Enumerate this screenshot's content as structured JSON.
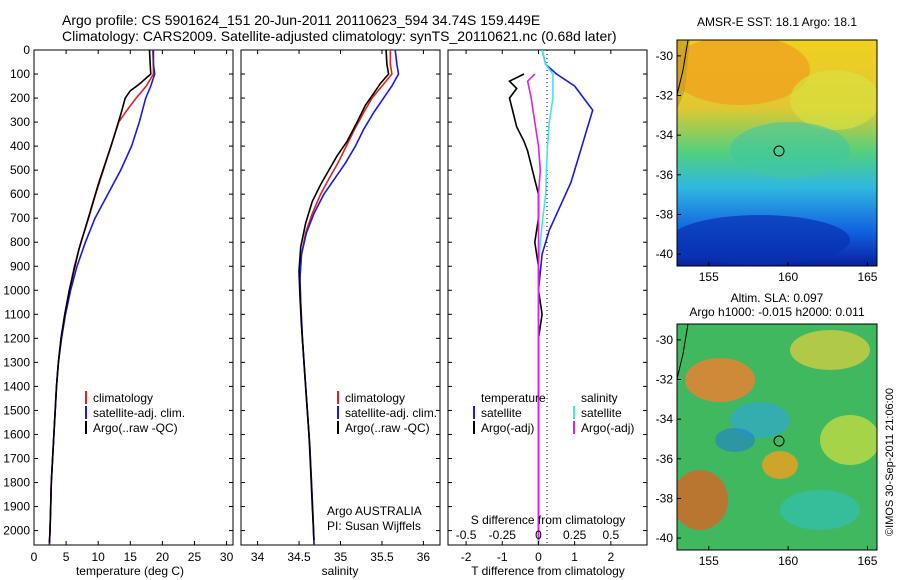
{
  "header": {
    "line1": "Argo profile: CS 5901624_151 20-Jun-2011 20110623_594 34.74S 159.449E",
    "line2": "Climatology: CARS2009. Satellite-adjusted climatology: synTS_20110621.nc (0.68d later)"
  },
  "colors": {
    "climatology": "#e8201c",
    "satellite": "#1a1adc",
    "argo": "#000000",
    "salinity_satellite": "#40e8e8",
    "salinity_argo": "#e020e0"
  },
  "chart_data": [
    {
      "type": "line",
      "panel": "temperature",
      "xlabel": "temperature (deg C)",
      "ylabel": "",
      "xlim": [
        0,
        31
      ],
      "ylim": [
        2060,
        0
      ],
      "xticks": [
        "0",
        "5",
        "10",
        "15",
        "20",
        "25",
        "30"
      ],
      "yticks": [
        "0",
        "100",
        "200",
        "300",
        "400",
        "500",
        "600",
        "700",
        "800",
        "900",
        "1000",
        "1100",
        "1200",
        "1300",
        "1400",
        "1500",
        "1600",
        "1700",
        "1800",
        "1900",
        "2000"
      ],
      "legend": [
        "climatology",
        "satellite-adj. clim.",
        "Argo(..raw -QC)"
      ],
      "series": [
        {
          "name": "climatology",
          "color": "climatology",
          "points": [
            [
              18.5,
              0
            ],
            [
              18.6,
              60
            ],
            [
              18.6,
              100
            ],
            [
              17.5,
              150
            ],
            [
              15.9,
              200
            ],
            [
              14.5,
              250
            ],
            [
              13.2,
              300
            ],
            [
              12.0,
              400
            ],
            [
              10.8,
              500
            ],
            [
              9.6,
              600
            ],
            [
              8.5,
              700
            ],
            [
              7.3,
              800
            ],
            [
              6.3,
              900
            ],
            [
              5.5,
              1000
            ],
            [
              4.8,
              1100
            ],
            [
              4.2,
              1200
            ],
            [
              3.8,
              1300
            ],
            [
              3.5,
              1400
            ],
            [
              3.3,
              1500
            ],
            [
              3.1,
              1600
            ],
            [
              2.9,
              1700
            ],
            [
              2.7,
              1800
            ],
            [
              2.6,
              1900
            ],
            [
              2.5,
              2000
            ],
            [
              2.4,
              2060
            ]
          ]
        },
        {
          "name": "satellite-adj. clim.",
          "color": "satellite",
          "points": [
            [
              18.6,
              0
            ],
            [
              18.6,
              60
            ],
            [
              18.8,
              100
            ],
            [
              18.2,
              150
            ],
            [
              17.4,
              200
            ],
            [
              16.4,
              300
            ],
            [
              15.2,
              400
            ],
            [
              13.5,
              500
            ],
            [
              11.5,
              600
            ],
            [
              9.5,
              700
            ],
            [
              8.0,
              800
            ],
            [
              6.7,
              900
            ],
            [
              5.7,
              1000
            ],
            [
              4.9,
              1100
            ],
            [
              4.3,
              1200
            ],
            [
              3.8,
              1300
            ],
            [
              3.5,
              1400
            ],
            [
              3.3,
              1500
            ],
            [
              3.1,
              1600
            ],
            [
              2.9,
              1700
            ],
            [
              2.7,
              1800
            ],
            [
              2.6,
              1900
            ],
            [
              2.5,
              2000
            ],
            [
              2.4,
              2060
            ]
          ]
        },
        {
          "name": "Argo(..raw -QC)",
          "color": "argo",
          "points": [
            [
              18.0,
              0
            ],
            [
              18.1,
              60
            ],
            [
              18.2,
              100
            ],
            [
              16.5,
              140
            ],
            [
              15.0,
              170
            ],
            [
              14.2,
              200
            ],
            [
              13.6,
              260
            ],
            [
              12.8,
              330
            ],
            [
              12.0,
              400
            ],
            [
              11.0,
              480
            ],
            [
              10.0,
              560
            ],
            [
              9.0,
              650
            ],
            [
              8.0,
              740
            ],
            [
              7.0,
              830
            ],
            [
              6.2,
              920
            ],
            [
              5.5,
              1000
            ],
            [
              4.8,
              1100
            ],
            [
              4.2,
              1200
            ],
            [
              3.8,
              1300
            ],
            [
              3.5,
              1400
            ],
            [
              3.3,
              1500
            ],
            [
              3.1,
              1600
            ],
            [
              2.9,
              1700
            ],
            [
              2.7,
              1800
            ],
            [
              2.6,
              1900
            ],
            [
              2.5,
              2000
            ],
            [
              2.4,
              2050
            ]
          ]
        }
      ]
    },
    {
      "type": "line",
      "panel": "salinity",
      "xlabel": "salinity",
      "xlim": [
        33.8,
        36.2
      ],
      "ylim": [
        2060,
        0
      ],
      "xticks": [
        "34",
        "34.5",
        "35",
        "35.5",
        "36"
      ],
      "legend": [
        "climatology",
        "satellite-adj. clim.",
        "Argo(..raw -QC)"
      ],
      "annotation": [
        "Argo AUSTRALIA",
        "PI: Susan Wijffels"
      ],
      "series": [
        {
          "name": "climatology",
          "color": "climatology",
          "points": [
            [
              35.6,
              0
            ],
            [
              35.6,
              60
            ],
            [
              35.62,
              100
            ],
            [
              35.5,
              150
            ],
            [
              35.38,
              200
            ],
            [
              35.28,
              260
            ],
            [
              35.17,
              330
            ],
            [
              35.07,
              400
            ],
            [
              34.97,
              470
            ],
            [
              34.87,
              530
            ],
            [
              34.76,
              600
            ],
            [
              34.66,
              680
            ],
            [
              34.58,
              760
            ],
            [
              34.53,
              850
            ],
            [
              34.51,
              950
            ],
            [
              34.52,
              1050
            ],
            [
              34.54,
              1200
            ],
            [
              34.57,
              1350
            ],
            [
              34.6,
              1500
            ],
            [
              34.63,
              1650
            ],
            [
              34.65,
              1800
            ],
            [
              34.67,
              1950
            ],
            [
              34.68,
              2060
            ]
          ]
        },
        {
          "name": "satellite-adj. clim.",
          "color": "satellite",
          "points": [
            [
              35.66,
              0
            ],
            [
              35.68,
              60
            ],
            [
              35.7,
              100
            ],
            [
              35.62,
              150
            ],
            [
              35.52,
              200
            ],
            [
              35.4,
              260
            ],
            [
              35.28,
              330
            ],
            [
              35.18,
              400
            ],
            [
              35.06,
              470
            ],
            [
              34.94,
              530
            ],
            [
              34.8,
              600
            ],
            [
              34.68,
              680
            ],
            [
              34.59,
              760
            ],
            [
              34.53,
              850
            ],
            [
              34.51,
              950
            ],
            [
              34.52,
              1050
            ],
            [
              34.54,
              1200
            ],
            [
              34.57,
              1350
            ],
            [
              34.6,
              1500
            ],
            [
              34.63,
              1650
            ],
            [
              34.65,
              1800
            ],
            [
              34.67,
              1950
            ],
            [
              34.68,
              2060
            ]
          ]
        },
        {
          "name": "Argo(..raw -QC)",
          "color": "argo",
          "points": [
            [
              35.55,
              0
            ],
            [
              35.56,
              60
            ],
            [
              35.58,
              100
            ],
            [
              35.48,
              140
            ],
            [
              35.4,
              180
            ],
            [
              35.3,
              230
            ],
            [
              35.2,
              300
            ],
            [
              35.08,
              380
            ],
            [
              34.96,
              440
            ],
            [
              34.86,
              500
            ],
            [
              34.76,
              560
            ],
            [
              34.66,
              630
            ],
            [
              34.58,
              720
            ],
            [
              34.52,
              820
            ],
            [
              34.5,
              920
            ],
            [
              34.51,
              1020
            ],
            [
              34.53,
              1150
            ],
            [
              34.56,
              1300
            ],
            [
              34.59,
              1450
            ],
            [
              34.62,
              1600
            ],
            [
              34.64,
              1750
            ],
            [
              34.66,
              1900
            ],
            [
              34.68,
              2040
            ]
          ]
        }
      ]
    },
    {
      "type": "line",
      "panel": "difference",
      "xlabel": "T difference from climatology",
      "xlabel_top": "S difference from climatology",
      "xlim": [
        -2.5,
        3.0
      ],
      "ylim": [
        2060,
        0
      ],
      "xticks": [
        "-2",
        "-1",
        "0",
        "1",
        "2"
      ],
      "xticks_s": [
        "-0.5",
        "-0.25",
        "0",
        "0.25",
        "0.5"
      ],
      "legend_temperature": [
        "temperature",
        "satellite",
        "Argo(-adj)"
      ],
      "legend_salinity": [
        "salinity",
        "satellite",
        "Argo(-adj)"
      ],
      "series": [
        {
          "name": "satellite",
          "color": "satellite",
          "points": [
            [
              0.1,
              0
            ],
            [
              0.2,
              60
            ],
            [
              0.5,
              100
            ],
            [
              1.0,
              150
            ],
            [
              1.5,
              250
            ],
            [
              1.3,
              350
            ],
            [
              1.1,
              450
            ],
            [
              0.9,
              550
            ],
            [
              0.6,
              650
            ],
            [
              0.3,
              750
            ],
            [
              0.1,
              850
            ],
            [
              0.0,
              1000
            ],
            [
              0.0,
              2060
            ]
          ]
        },
        {
          "name": "Argo(-adj)",
          "color": "argo",
          "points": [
            [
              -0.4,
              100
            ],
            [
              -0.8,
              130
            ],
            [
              -0.6,
              160
            ],
            [
              -0.8,
              200
            ],
            [
              -0.7,
              260
            ],
            [
              -0.6,
              320
            ],
            [
              -0.4,
              380
            ],
            [
              -0.3,
              420
            ],
            [
              -0.2,
              480
            ],
            [
              -0.1,
              540
            ],
            [
              0.0,
              600
            ],
            [
              0.0,
              700
            ],
            [
              -0.1,
              800
            ],
            [
              0.0,
              900
            ],
            [
              0.0,
              1000
            ],
            [
              0.1,
              1100
            ],
            [
              0.0,
              1200
            ],
            [
              0.0,
              1300
            ],
            [
              0.0,
              2040
            ]
          ]
        },
        {
          "name": "salinity satellite",
          "color": "salinity_satellite",
          "points": [
            [
              0.1,
              0
            ],
            [
              0.2,
              60
            ],
            [
              0.4,
              100
            ],
            [
              0.4,
              200
            ],
            [
              0.3,
              300
            ],
            [
              0.25,
              400
            ],
            [
              0.22,
              500
            ],
            [
              0.2,
              600
            ],
            [
              0.12,
              700
            ],
            [
              0.05,
              800
            ],
            [
              0.0,
              900
            ],
            [
              0.0,
              2060
            ]
          ]
        },
        {
          "name": "salinity Argo(-adj)",
          "color": "salinity_argo",
          "points": [
            [
              -0.1,
              100
            ],
            [
              -0.3,
              130
            ],
            [
              -0.2,
              200
            ],
            [
              -0.1,
              300
            ],
            [
              0.0,
              400
            ],
            [
              0.05,
              500
            ],
            [
              0.0,
              600
            ],
            [
              0.0,
              700
            ],
            [
              0.0,
              2040
            ]
          ]
        }
      ]
    },
    {
      "type": "heatmap",
      "panel": "map-sst",
      "title": "AMSR-E SST: 18.1  Argo: 18.1",
      "xticks": [
        "155",
        "160",
        "165"
      ],
      "yticks": [
        "-30",
        "-32",
        "-34",
        "-36",
        "-38",
        "-40"
      ],
      "marker": {
        "lon": 159.449,
        "lat": -34.74
      }
    },
    {
      "type": "heatmap",
      "panel": "map-sla",
      "title_line1": "Altim. SLA: 0.097",
      "title_line2": "Argo h1000: -0.015 h2000: 0.011",
      "xticks": [
        "155",
        "160",
        "165"
      ],
      "yticks": [
        "-30",
        "-32",
        "-34",
        "-36",
        "-38",
        "-40"
      ],
      "marker": {
        "lon": 159.449,
        "lat": -34.74
      }
    }
  ],
  "credit": "©IMOS 30-Sep-2011 21:06:00"
}
